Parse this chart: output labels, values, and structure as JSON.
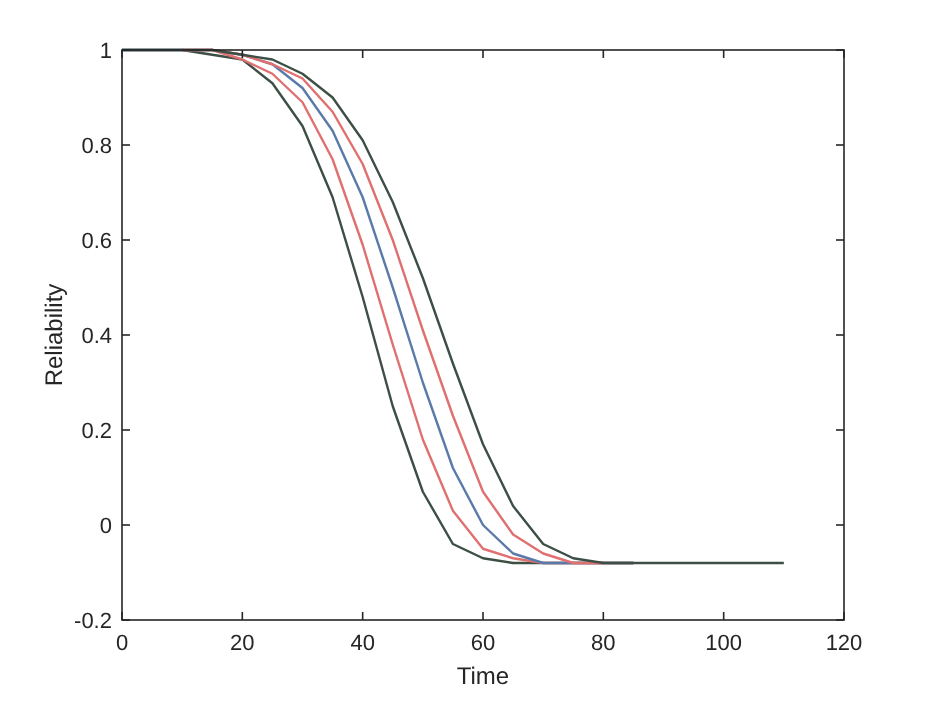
{
  "chart_data": {
    "type": "line",
    "xlabel": "Time",
    "ylabel": "Reliability",
    "x": [
      0,
      5,
      10,
      15,
      20,
      25,
      30,
      35,
      40,
      45,
      50,
      55,
      60,
      65,
      70,
      75,
      80,
      85,
      90,
      95,
      100,
      105,
      110
    ],
    "series": [
      {
        "color": "#3d4f45",
        "values": [
          1,
          1,
          1,
          0.99,
          0.98,
          0.93,
          0.84,
          0.69,
          0.48,
          0.25,
          0.07,
          -0.04,
          -0.07,
          -0.08,
          -0.08,
          -0.08,
          -0.08,
          -0.08,
          null,
          null,
          null,
          null,
          null
        ]
      },
      {
        "color": "#e07070",
        "values": [
          null,
          null,
          1,
          1,
          0.98,
          0.95,
          0.89,
          0.77,
          0.59,
          0.38,
          0.18,
          0.03,
          -0.05,
          -0.07,
          -0.08,
          -0.08,
          -0.08,
          -0.08,
          null,
          null,
          null,
          null,
          null
        ]
      },
      {
        "color": "#5a7aaa",
        "values": [
          1,
          1,
          1,
          1,
          0.99,
          0.97,
          0.92,
          0.83,
          0.69,
          0.5,
          0.3,
          0.12,
          0,
          -0.06,
          -0.08,
          -0.08,
          -0.08,
          -0.08,
          null,
          null,
          null,
          null,
          null
        ]
      },
      {
        "color": "#e07070",
        "values": [
          null,
          null,
          1,
          1,
          0.99,
          0.97,
          0.94,
          0.87,
          0.76,
          0.6,
          0.41,
          0.23,
          0.07,
          -0.02,
          -0.06,
          -0.08,
          -0.08,
          null,
          null,
          null,
          null,
          null,
          null
        ]
      },
      {
        "color": "#3d4f45",
        "values": [
          1,
          1,
          1,
          1,
          0.99,
          0.98,
          0.95,
          0.9,
          0.81,
          0.68,
          0.52,
          0.34,
          0.17,
          0.04,
          -0.04,
          -0.07,
          -0.08,
          -0.08,
          -0.08,
          -0.08,
          -0.08,
          -0.08,
          -0.08
        ]
      }
    ],
    "xlim": [
      0,
      120
    ],
    "xticks": [
      0,
      20,
      40,
      60,
      80,
      100,
      120
    ],
    "ylim": [
      -0.2,
      1
    ],
    "yticks": [
      -0.2,
      0,
      0.2,
      0.4,
      0.6,
      0.8,
      1
    ],
    "grid": false,
    "marker": "none",
    "line_style": "solid"
  }
}
